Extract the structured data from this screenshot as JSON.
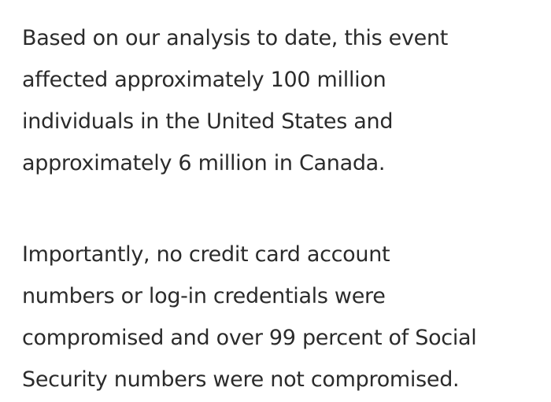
{
  "paragraphs": [
    {
      "lines": [
        "Based on our analysis to date, this event",
        "affected approximately 100 million",
        "individuals in the United States and",
        "approximately 6 million in Canada."
      ]
    },
    {
      "lines": [
        "Importantly, no credit card account",
        "numbers or log-in credentials were",
        "compromised and over 99 percent of Social",
        "Security numbers were not compromised."
      ]
    }
  ]
}
